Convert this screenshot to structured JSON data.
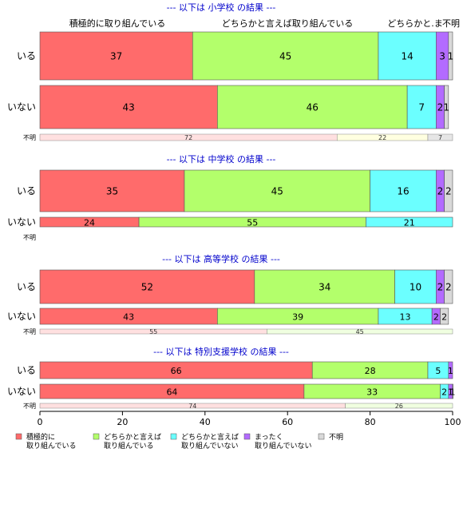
{
  "chart_data": {
    "type": "bar",
    "orientation": "horizontal",
    "stacked": true,
    "xlim": [
      0,
      100
    ],
    "x_ticks": [
      "0",
      "20",
      "40",
      "60",
      "80",
      "100"
    ],
    "column_headers": [
      "積極的に取り組んでいる",
      "どちらかと言えば取り組んでいる",
      "どちらかと.ま",
      "不明"
    ],
    "legend": {
      "placement": "bottom",
      "entries": [
        {
          "label": "積極的に\n取り組んでいる",
          "color": "#FF6B6B"
        },
        {
          "label": "どちらかと言えば\n取り組んでいる",
          "color": "#B3FF6B"
        },
        {
          "label": "どちらかと言えば\n取り組んでいない",
          "color": "#6BFFFF"
        },
        {
          "label": "まったく\n取り組んでいない",
          "color": "#B36BFF"
        },
        {
          "label": "不明",
          "color": "#D9D9D9"
        }
      ]
    },
    "panels": [
      {
        "title": "--- 以下は 小学校 の結果 ---",
        "rows": [
          {
            "label": "いる",
            "values": [
              37,
              45,
              14,
              3,
              1
            ],
            "size": "tall"
          },
          {
            "label": "いない",
            "values": [
              43,
              46,
              7,
              2,
              1
            ],
            "size": "tall"
          }
        ],
        "unknown": {
          "label": "不明",
          "values": [
            72,
            22,
            7
          ],
          "colors": [
            "#FFE0E0",
            "#FFFFE0",
            "#E6E6E6"
          ]
        }
      },
      {
        "title": "--- 以下は 中学校 の結果 ---",
        "rows": [
          {
            "label": "いる",
            "values": [
              35,
              45,
              16,
              2,
              2
            ],
            "size": "tall"
          },
          {
            "label": "いない",
            "values": [
              24,
              55,
              21,
              0,
              0
            ],
            "size": "short"
          }
        ],
        "unknown": {
          "label": "不明",
          "values": [],
          "colors": []
        }
      },
      {
        "title": "--- 以下は 高等学校 の結果 ---",
        "rows": [
          {
            "label": "いる",
            "values": [
              52,
              34,
              10,
              2,
              2
            ],
            "size": "tall"
          },
          {
            "label": "いない",
            "values": [
              43,
              39,
              13,
              2,
              2
            ],
            "size": "mid"
          }
        ],
        "unknown": {
          "label": "不明",
          "values": [
            55,
            45
          ],
          "colors": [
            "#FFE0E0",
            "#F0FFE0"
          ]
        }
      },
      {
        "title": "--- 以下は 特別支援学校 の結果 ---",
        "rows": [
          {
            "label": "いる",
            "values": [
              66,
              28,
              5,
              1,
              0
            ],
            "size": "mid"
          },
          {
            "label": "いない",
            "values": [
              64,
              33,
              2,
              1,
              1
            ],
            "size": "mid"
          }
        ],
        "unknown": {
          "label": "不明",
          "values": [
            74,
            26
          ],
          "colors": [
            "#FFE0E0",
            "#F0FFE0"
          ]
        }
      }
    ]
  }
}
